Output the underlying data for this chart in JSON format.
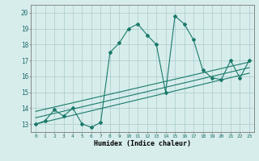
{
  "title": "",
  "xlabel": "Humidex (Indice chaleur)",
  "ylabel": "",
  "background_color": "#d7edec",
  "grid_color": "#b0d0d0",
  "line_color": "#1a7a6a",
  "xlim": [
    -0.5,
    23.5
  ],
  "ylim": [
    12.5,
    20.5
  ],
  "xticks": [
    0,
    1,
    2,
    3,
    4,
    5,
    6,
    7,
    8,
    9,
    10,
    11,
    12,
    13,
    14,
    15,
    16,
    17,
    18,
    19,
    20,
    21,
    22,
    23
  ],
  "yticks": [
    13,
    14,
    15,
    16,
    17,
    18,
    19,
    20
  ],
  "main_series_x": [
    0,
    1,
    2,
    3,
    4,
    5,
    6,
    7,
    8,
    9,
    10,
    11,
    12,
    13,
    14,
    15,
    16,
    17,
    18,
    19,
    20,
    21,
    22,
    23
  ],
  "main_series_y": [
    13.0,
    13.2,
    13.9,
    13.5,
    14.0,
    13.0,
    12.8,
    13.1,
    17.5,
    18.1,
    19.0,
    19.3,
    18.6,
    18.0,
    15.0,
    19.8,
    19.3,
    18.3,
    16.4,
    15.9,
    15.8,
    17.0,
    15.9,
    17.0
  ],
  "line1_x": [
    0,
    23
  ],
  "line1_y": [
    13.0,
    16.2
  ],
  "line2_x": [
    0,
    23
  ],
  "line2_y": [
    13.4,
    16.55
  ],
  "line3_x": [
    0,
    23
  ],
  "line3_y": [
    13.8,
    16.9
  ]
}
